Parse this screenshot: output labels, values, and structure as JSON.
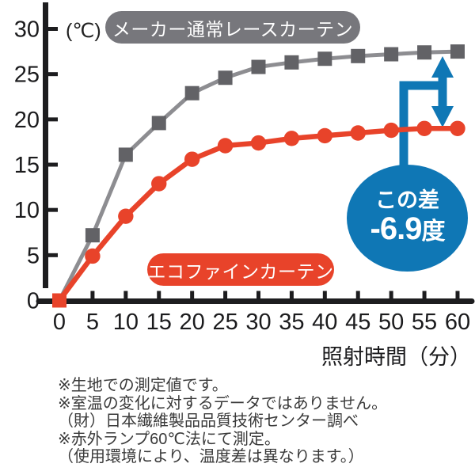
{
  "chart_data": {
    "type": "line",
    "x": [
      0,
      5,
      10,
      15,
      20,
      25,
      30,
      35,
      40,
      45,
      50,
      55,
      60
    ],
    "xlabel": "照射時間（分）",
    "ylabel": "(℃)",
    "xlim": [
      0,
      60
    ],
    "ylim": [
      0,
      30
    ],
    "y_ticks": [
      0,
      5,
      10,
      15,
      20,
      25,
      30
    ],
    "grid": false,
    "axis_color": "#1d1d1f",
    "legend_position": "inline-pills",
    "series": [
      {
        "name": "メーカー通常レースカーテン",
        "marker": "square",
        "line_color": "#8d8d91",
        "marker_color": "#626266",
        "pill_color": "#77777c",
        "values": [
          0,
          7.2,
          16.1,
          19.6,
          22.9,
          24.6,
          25.8,
          26.3,
          26.7,
          27.0,
          27.2,
          27.4,
          27.5
        ]
      },
      {
        "name": "エコファインカーテン",
        "marker": "circle",
        "first_marker": "square",
        "line_color": "#e8432a",
        "marker_color": "#e8432a",
        "pill_color": "#e8432a",
        "values": [
          0,
          4.9,
          9.3,
          12.9,
          15.6,
          17.1,
          17.4,
          17.9,
          18.2,
          18.5,
          18.8,
          19.0,
          19.0
        ]
      }
    ],
    "annotation": {
      "label": "この差",
      "value": "-6.9",
      "unit": "度",
      "color": "#0f77b5"
    }
  },
  "notes": {
    "lines": [
      "※生地での測定値です。",
      "※室温の変化に対するデータではありません。",
      "（財）日本繊維製品品質技術センター調べ",
      "※赤外ランプ60℃法にて測定。",
      "（使用環境により、温度差は異なります。）"
    ]
  }
}
